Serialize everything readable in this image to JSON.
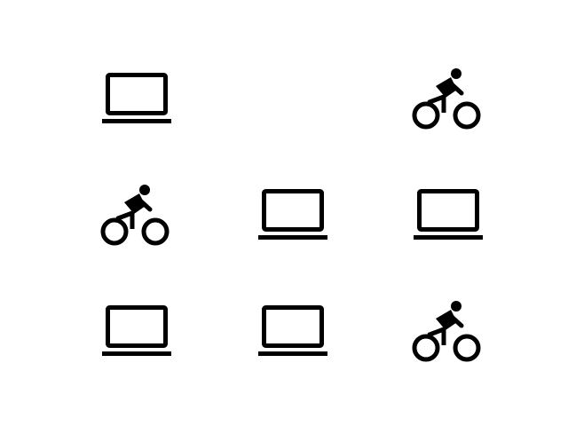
{
  "colors": {
    "background": "#ffffff",
    "icon": "#000000"
  },
  "grid": {
    "rows": 3,
    "columns": 3,
    "cells": [
      {
        "row": 1,
        "column": 1,
        "icon": "laptop-icon"
      },
      {
        "row": 1,
        "column": 2,
        "icon": "empty"
      },
      {
        "row": 1,
        "column": 3,
        "icon": "bicycle-icon"
      },
      {
        "row": 2,
        "column": 1,
        "icon": "bicycle-icon"
      },
      {
        "row": 2,
        "column": 2,
        "icon": "laptop-icon"
      },
      {
        "row": 2,
        "column": 3,
        "icon": "laptop-icon"
      },
      {
        "row": 3,
        "column": 1,
        "icon": "laptop-icon"
      },
      {
        "row": 3,
        "column": 2,
        "icon": "laptop-icon"
      },
      {
        "row": 3,
        "column": 3,
        "icon": "bicycle-icon"
      }
    ]
  }
}
